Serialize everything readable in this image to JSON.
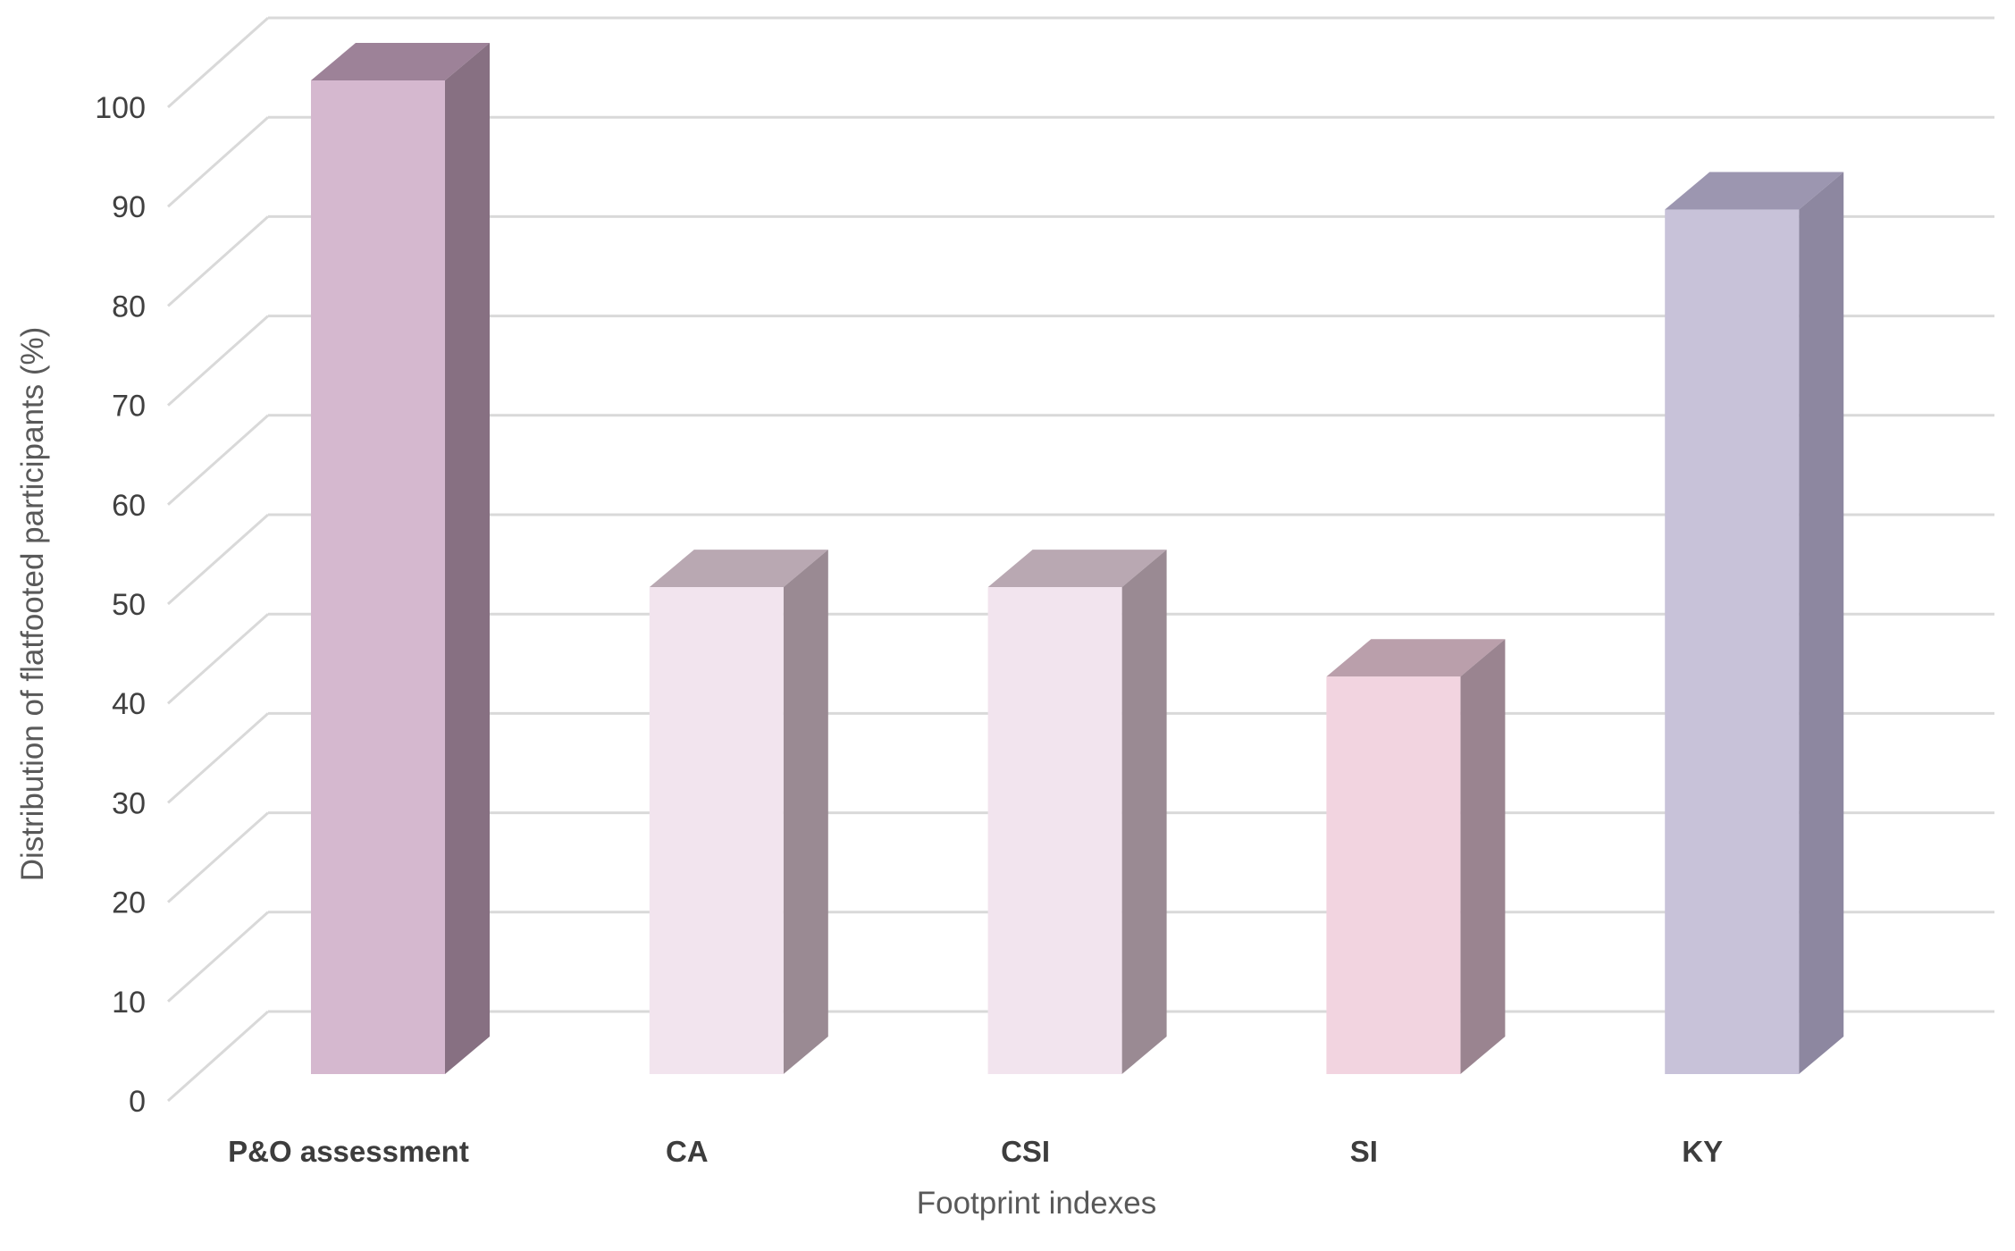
{
  "chart_data": {
    "type": "bar",
    "projection": "3d",
    "title": "",
    "xlabel": "Footprint indexes",
    "ylabel": "Distribution of flatfooted participants (%)",
    "categories": [
      "P&O assessment",
      "CA",
      "CSI",
      "SI",
      "KY"
    ],
    "values": [
      100,
      49,
      49,
      40,
      87
    ],
    "ylim": [
      0,
      100
    ],
    "ytick_interval": 10,
    "ytick_labels": [
      "0",
      "10",
      "20",
      "30",
      "40",
      "50",
      "60",
      "70",
      "80",
      "90",
      "100"
    ],
    "grid": true,
    "legend": false,
    "bar_styles": [
      {
        "category": "P&O assessment",
        "front": "#d5b8cf",
        "top": "#9d8298",
        "side": "#877082"
      },
      {
        "category": "CA",
        "front": "#f2e4ee",
        "top": "#b9a8b2",
        "side": "#9a8a93"
      },
      {
        "category": "CSI",
        "front": "#f2e4ee",
        "top": "#b9a8b2",
        "side": "#9a8a93"
      },
      {
        "category": "SI",
        "front": "#f2d4e0",
        "top": "#ba9fab",
        "side": "#9a8490"
      },
      {
        "category": "KY",
        "front": "#c8c2d9",
        "top": "#9c96b0",
        "side": "#8d87a0"
      }
    ],
    "colors": {
      "background": "#ffffff",
      "gridline": "#d9d9d9",
      "axis_title_text": "#595959",
      "tick_text": "#404040",
      "category_text": "#3d3d3d"
    }
  }
}
